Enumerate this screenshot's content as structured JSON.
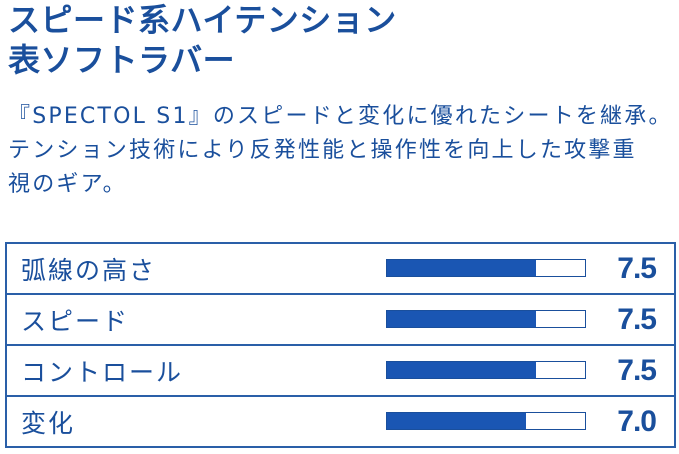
{
  "headline": {
    "line1": "スピード系ハイテンション",
    "line2": "表ソフトラバー"
  },
  "description": {
    "line1": "『SPECTOL S1』のスピードと変化に優れたシートを継承。",
    "line2": "テンション技術により反発性能と操作性を向上した攻撃重",
    "line3": "視のギア。"
  },
  "specs": {
    "rows": [
      {
        "label": "弧線の高さ",
        "value": "7.5",
        "fraction": 0.75
      },
      {
        "label": "スピード",
        "value": "7.5",
        "fraction": 0.75
      },
      {
        "label": "コントロール",
        "value": "7.5",
        "fraction": 0.75
      },
      {
        "label": "変化",
        "value": "7.0",
        "fraction": 0.7
      }
    ]
  },
  "colors": {
    "text": "#1a4f9c",
    "bar_fill": "#1a56b3",
    "border": "#2a5fa8"
  }
}
